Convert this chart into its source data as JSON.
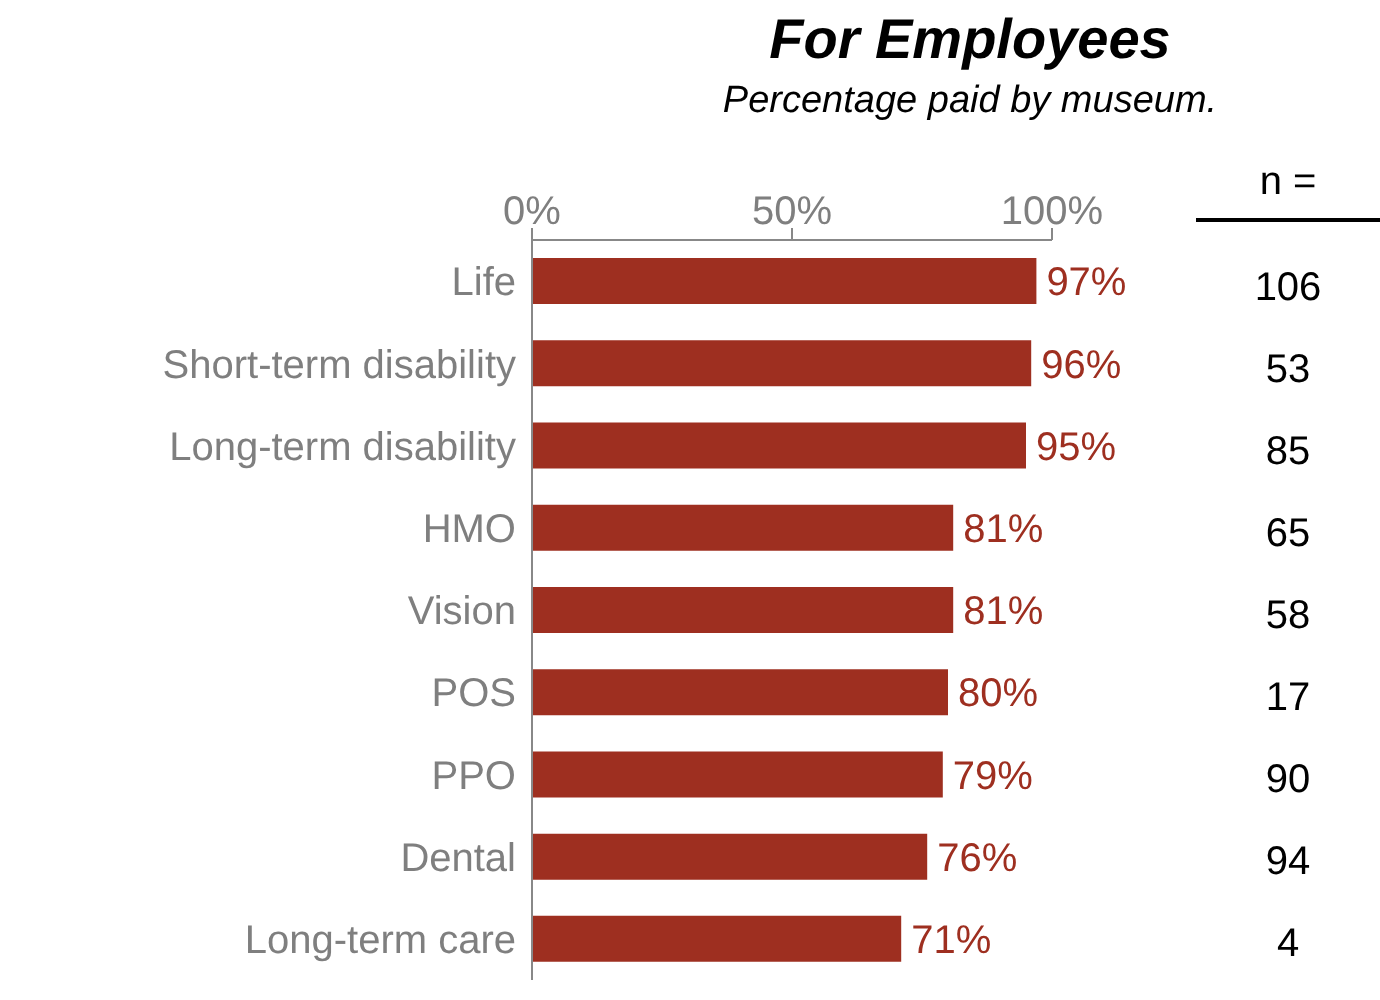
{
  "chart_data": {
    "type": "bar",
    "orientation": "horizontal",
    "title": "For Employees",
    "subtitle": "Percentage paid by museum.",
    "categories": [
      "Life",
      "Short-term disability",
      "Long-term disability",
      "HMO",
      "Vision",
      "POS",
      "PPO",
      "Dental",
      "Long-term care"
    ],
    "series": [
      {
        "color": "#9e2f20",
        "values": [
          97,
          96,
          95,
          81,
          81,
          80,
          79,
          76,
          71
        ],
        "value_labels": [
          "97%",
          "96%",
          "95%",
          "81%",
          "81%",
          "80%",
          "79%",
          "76%",
          "71%"
        ]
      }
    ],
    "xlim": [
      0,
      100
    ],
    "xticks": [
      {
        "value": 0,
        "label": "0%"
      },
      {
        "value": 50,
        "label": "50%"
      },
      {
        "value": 100,
        "label": "100%"
      }
    ],
    "annotations": [
      "n =",
      "106",
      "53",
      "85",
      "65",
      "58",
      "17",
      "90",
      "94",
      "4"
    ]
  }
}
